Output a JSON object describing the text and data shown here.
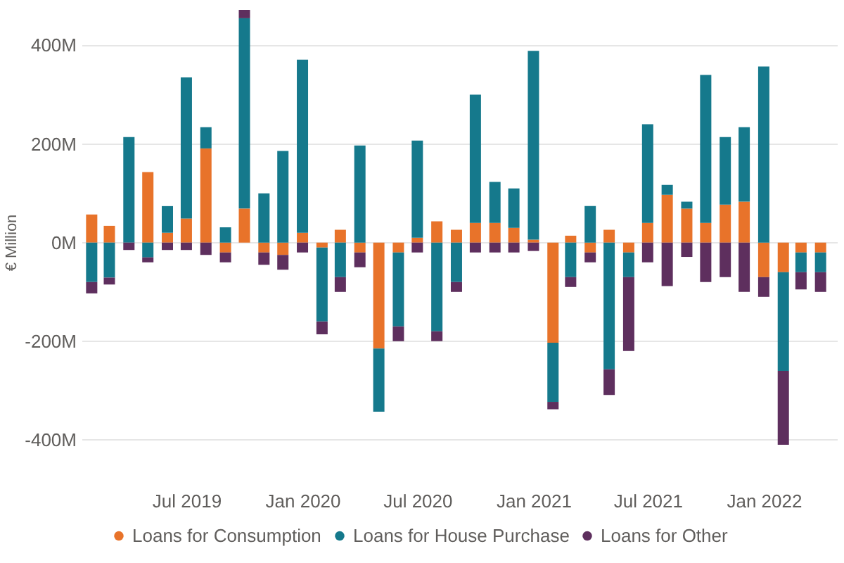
{
  "chart_data": {
    "type": "bar",
    "stacked": true,
    "ylabel": "€ Million",
    "x": [
      "2019-02",
      "2019-03",
      "2019-04",
      "2019-05",
      "2019-06",
      "2019-07",
      "2019-08",
      "2019-09",
      "2019-10",
      "2019-11",
      "2019-12",
      "2020-01",
      "2020-02",
      "2020-03",
      "2020-04",
      "2020-05",
      "2020-06",
      "2020-07",
      "2020-08",
      "2020-09",
      "2020-10",
      "2020-11",
      "2020-12",
      "2021-01",
      "2021-02",
      "2021-03",
      "2021-04",
      "2021-05",
      "2021-06",
      "2021-07",
      "2021-08",
      "2021-09",
      "2021-10",
      "2021-11",
      "2021-12",
      "2022-01",
      "2022-02",
      "2022-03",
      "2022-04"
    ],
    "xlim": [
      "2019-01-16",
      "2022-04-27"
    ],
    "xticks": [
      {
        "value": "2019-07",
        "label": "Jul 2019"
      },
      {
        "value": "2020-01",
        "label": "Jan 2020"
      },
      {
        "value": "2020-07",
        "label": "Jul 2020"
      },
      {
        "value": "2021-01",
        "label": "Jan 2021"
      },
      {
        "value": "2021-07",
        "label": "Jul 2021"
      },
      {
        "value": "2022-01",
        "label": "Jan 2022"
      }
    ],
    "ylim": [
      -410,
      472
    ],
    "yticks": [
      {
        "value": -400,
        "label": "-400M"
      },
      {
        "value": -200,
        "label": "-200M"
      },
      {
        "value": 0,
        "label": "0M"
      },
      {
        "value": 200,
        "label": "200M"
      },
      {
        "value": 400,
        "label": "400M"
      }
    ],
    "grid": "y",
    "legend": "bottom",
    "series": [
      {
        "name": "Loans for Consumption",
        "color": "#e8732a",
        "values": [
          57,
          34,
          null,
          143,
          20,
          49,
          191,
          -20,
          69,
          -20,
          -25,
          20,
          -10,
          26,
          -20,
          -215,
          -20,
          10,
          43,
          26,
          40,
          40,
          30,
          6,
          -203,
          14,
          -20,
          26,
          -20,
          40,
          97,
          69,
          40,
          77,
          83,
          -70,
          -60,
          -20,
          -20
        ]
      },
      {
        "name": "Loans for House Purchase",
        "color": "#15798c",
        "values": [
          -80,
          -71,
          214,
          -30,
          54,
          286,
          43,
          31,
          386,
          100,
          186,
          351,
          -150,
          -70,
          197,
          -128,
          -150,
          197,
          -180,
          -80,
          260,
          83,
          80,
          383,
          -120,
          -70,
          74,
          -257,
          -50,
          200,
          20,
          14,
          300,
          137,
          151,
          357,
          -200,
          -40,
          -40
        ]
      },
      {
        "name": "Loans for Other",
        "color": "#5e2f5e",
        "values": [
          -23,
          -14,
          -15,
          -10,
          -15,
          -15,
          -25,
          -20,
          17,
          -25,
          -30,
          -20,
          -26,
          -30,
          -30,
          null,
          -30,
          -20,
          -20,
          -20,
          -20,
          -20,
          -20,
          -17,
          -15,
          -20,
          -20,
          -52,
          -150,
          -40,
          -88,
          -29,
          -80,
          -70,
          -100,
          -40,
          -150,
          -35,
          -40
        ]
      }
    ]
  }
}
